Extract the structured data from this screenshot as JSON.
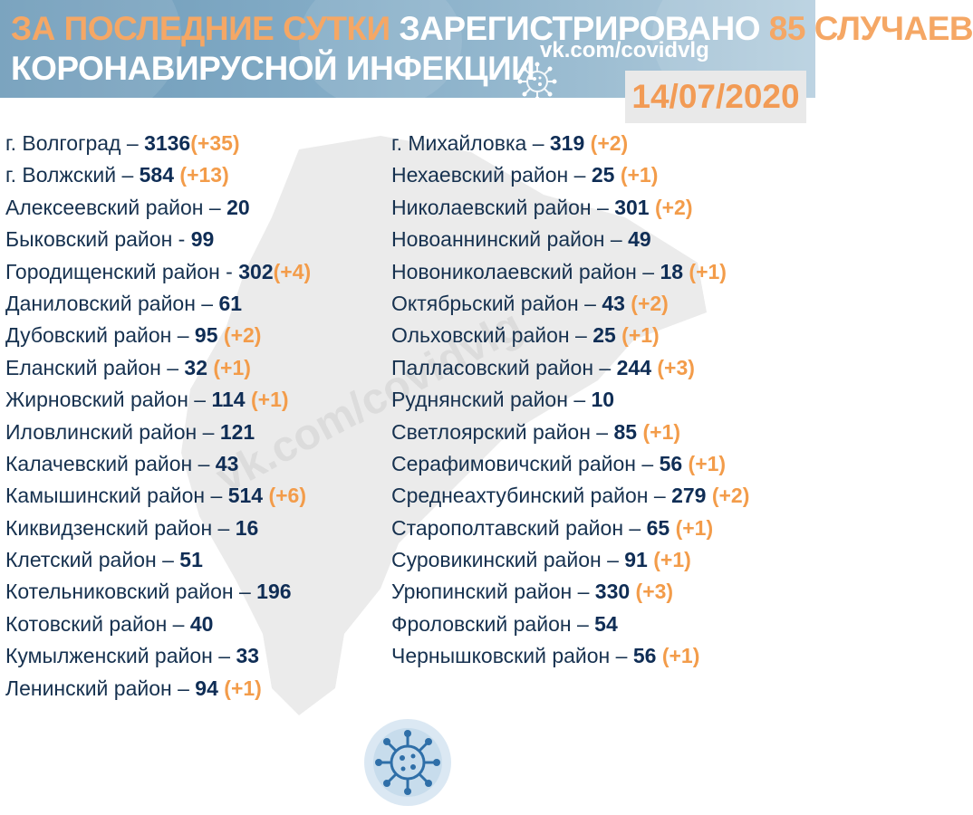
{
  "header": {
    "title_part1": "ЗА ПОСЛЕДНИЕ СУТКИ ",
    "title_part2": "ЗАРЕГИСТРИРОВАНО ",
    "title_highlight": "85 СЛУЧАЕВ",
    "title_line2": "КОРОНАВИРУСНОЙ ИНФЕКЦИИ",
    "vk_link": "vk.com/covidvlg",
    "date": "14/07/2020"
  },
  "watermark": "vk.com/covidvlg",
  "colors": {
    "accent": "#f39c4a",
    "number": "#0f2d55",
    "header_bg": "#7ea6c1",
    "map": "#ebebeb"
  },
  "left_column": [
    {
      "name": "г. Волгоград",
      "sep": " – ",
      "count": "3136",
      "inc": "(+35)"
    },
    {
      "name": "г. Волжский",
      "sep": " – ",
      "count": "584",
      "inc": "(+13)"
    },
    {
      "name": "Алексеевский район",
      "sep": " – ",
      "count": "20",
      "inc": ""
    },
    {
      "name": "Быковский район",
      "sep": " - ",
      "count": "99",
      "inc": ""
    },
    {
      "name": "Городищенский район",
      "sep": " - ",
      "count": "302",
      "inc": "(+4)"
    },
    {
      "name": "Даниловский район",
      "sep": " – ",
      "count": "61",
      "inc": ""
    },
    {
      "name": "Дубовский район",
      "sep": " – ",
      "count": "95",
      "inc": "(+2)"
    },
    {
      "name": "Еланский район",
      "sep": " – ",
      "count": "32",
      "inc": "(+1)"
    },
    {
      "name": "Жирновский район",
      "sep": " – ",
      "count": "114",
      "inc": "(+1)"
    },
    {
      "name": "Иловлинский район",
      "sep": " – ",
      "count": "121",
      "inc": ""
    },
    {
      "name": "Калачевский район",
      "sep": " – ",
      "count": "43",
      "inc": ""
    },
    {
      "name": "Камышинский район",
      "sep": " – ",
      "count": "514",
      "inc": "(+6)"
    },
    {
      "name": "Киквидзенский район",
      "sep": " – ",
      "count": "16",
      "inc": ""
    },
    {
      "name": "Клетский район",
      "sep": " – ",
      "count": "51",
      "inc": ""
    },
    {
      "name": "Котельниковский район",
      "sep": " – ",
      "count": "196",
      "inc": ""
    },
    {
      "name": "Котовский район",
      "sep": " – ",
      "count": "40",
      "inc": ""
    },
    {
      "name": "Кумылженский район",
      "sep": " – ",
      "count": "33",
      "inc": ""
    },
    {
      "name": "Ленинский район",
      "sep": " – ",
      "count": "94",
      "inc": "(+1)"
    }
  ],
  "right_column": [
    {
      "name": "г. Михайловка",
      "sep": " – ",
      "count": "319",
      "inc": "(+2)"
    },
    {
      "name": "Нехаевский район",
      "sep": " – ",
      "count": "25",
      "inc": "(+1)"
    },
    {
      "name": "Николаевский район",
      "sep": " – ",
      "count": "301",
      "inc": "(+2)"
    },
    {
      "name": "Новоаннинский район",
      "sep": " – ",
      "count": "49",
      "inc": ""
    },
    {
      "name": "Новониколаевский район",
      "sep": " – ",
      "count": "18",
      "inc": "(+1)"
    },
    {
      "name": "Октябрьский район",
      "sep": " – ",
      "count": "43",
      "inc": "(+2)"
    },
    {
      "name": "Ольховский район",
      "sep": " – ",
      "count": "25",
      "inc": "(+1)"
    },
    {
      "name": "Палласовский район",
      "sep": " – ",
      "count": "244",
      "inc": "(+3)"
    },
    {
      "name": "Руднянский район",
      "sep": " – ",
      "count": "10",
      "inc": ""
    },
    {
      "name": "Светлоярский район",
      "sep": " – ",
      "count": "85",
      "inc": "(+1)"
    },
    {
      "name": "Серафимовичский район",
      "sep": " – ",
      "count": "56",
      "inc": "(+1)"
    },
    {
      "name": "Среднеахтубинский район",
      "sep": " – ",
      "count": "279",
      "inc": "(+2)"
    },
    {
      "name": "Старополтавский район",
      "sep": " – ",
      "count": "65",
      "inc": "(+1)"
    },
    {
      "name": "Суровикинский район",
      "sep": " – ",
      "count": "91",
      "inc": "(+1)"
    },
    {
      "name": "Урюпинский район",
      "sep": " – ",
      "count": "330",
      "inc": "(+3)"
    },
    {
      "name": "Фроловский район",
      "sep": " – ",
      "count": "54",
      "inc": ""
    },
    {
      "name": "Чернышковский район",
      "sep": " – ",
      "count": "56",
      "inc": "(+1)"
    }
  ],
  "icons": {
    "header": "coronavirus-icon",
    "bottom": "coronavirus-icon"
  }
}
